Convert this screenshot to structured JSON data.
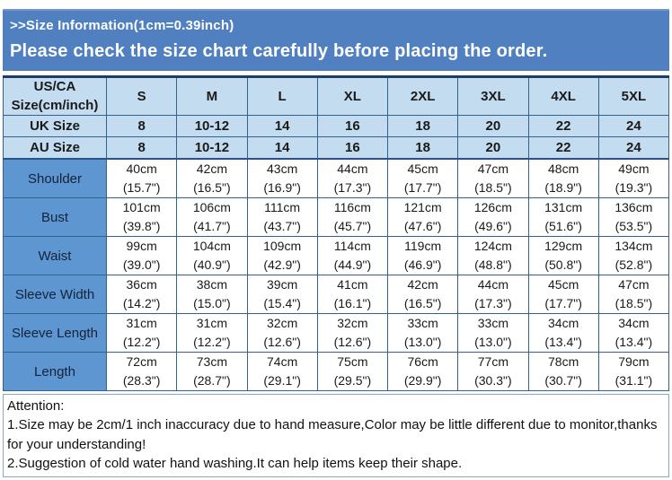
{
  "banner": {
    "line1": ">>Size Information(1cm=0.39inch)",
    "line2": "Please check the size chart carefully before placing the order."
  },
  "table": {
    "header": {
      "corner_line1": "US/CA",
      "corner_line2": "Size(cm/inch)",
      "sizes": [
        "S",
        "M",
        "L",
        "XL",
        "2XL",
        "3XL",
        "4XL",
        "5XL"
      ]
    },
    "size_rows": [
      {
        "label": "UK Size",
        "values": [
          "8",
          "10-12",
          "14",
          "16",
          "18",
          "20",
          "22",
          "24"
        ]
      },
      {
        "label": "AU Size",
        "values": [
          "8",
          "10-12",
          "14",
          "16",
          "18",
          "20",
          "22",
          "24"
        ]
      }
    ],
    "measurement_rows": [
      {
        "label": "Shoulder",
        "cm": [
          "40cm",
          "42cm",
          "43cm",
          "44cm",
          "45cm",
          "47cm",
          "48cm",
          "49cm"
        ],
        "inch": [
          "(15.7\")",
          "(16.5\")",
          "(16.9\")",
          "(17.3\")",
          "(17.7\")",
          "(18.5\")",
          "(18.9\")",
          "(19.3\")"
        ]
      },
      {
        "label": "Bust",
        "cm": [
          "101cm",
          "106cm",
          "111cm",
          "116cm",
          "121cm",
          "126cm",
          "131cm",
          "136cm"
        ],
        "inch": [
          "(39.8\")",
          "(41.7\")",
          "(43.7\")",
          "(45.7\")",
          "(47.6\")",
          "(49.6\")",
          "(51.6\")",
          "(53.5\")"
        ]
      },
      {
        "label": "Waist",
        "cm": [
          "99cm",
          "104cm",
          "109cm",
          "114cm",
          "119cm",
          "124cm",
          "129cm",
          "134cm"
        ],
        "inch": [
          "(39.0\")",
          "(40.9\")",
          "(42.9\")",
          "(44.9\")",
          "(46.9\")",
          "(48.8\")",
          "(50.8\")",
          "(52.8\")"
        ]
      },
      {
        "label": "Sleeve Width",
        "cm": [
          "36cm",
          "38cm",
          "39cm",
          "41cm",
          "42cm",
          "44cm",
          "45cm",
          "47cm"
        ],
        "inch": [
          "(14.2\")",
          "(15.0\")",
          "(15.4\")",
          "(16.1\")",
          "(16.5\")",
          "(17.3\")",
          "(17.7\")",
          "(18.5\")"
        ]
      },
      {
        "label": "Sleeve Length",
        "cm": [
          "31cm",
          "31cm",
          "32cm",
          "32cm",
          "33cm",
          "33cm",
          "34cm",
          "34cm"
        ],
        "inch": [
          "(12.2\")",
          "(12.2\")",
          "(12.6\")",
          "(12.6\")",
          "(13.0\")",
          "(13.0\")",
          "(13.4\")",
          "(13.4\")"
        ]
      },
      {
        "label": "Length",
        "cm": [
          "72cm",
          "73cm",
          "74cm",
          "75cm",
          "76cm",
          "77cm",
          "78cm",
          "79cm"
        ],
        "inch": [
          "(28.3\")",
          "(28.7\")",
          "(29.1\")",
          "(29.5\")",
          "(29.9\")",
          "(30.3\")",
          "(30.7\")",
          "(31.1\")"
        ]
      }
    ]
  },
  "attention": {
    "title": "Attention:",
    "note1": "1.Size may be 2cm/1 inch inaccuracy due to hand measure,Color may be little different due to monitor,thanks for your understanding!",
    "note2": "2.Suggestion of cold water hand washing.It can help items keep their shape."
  },
  "colors": {
    "banner_bg": "#5080bf",
    "header_cell_bg": "#c3dcf0",
    "row_label_bg": "#5e96d2",
    "table_border": "#35618f",
    "attention_border": "#86aac6"
  }
}
